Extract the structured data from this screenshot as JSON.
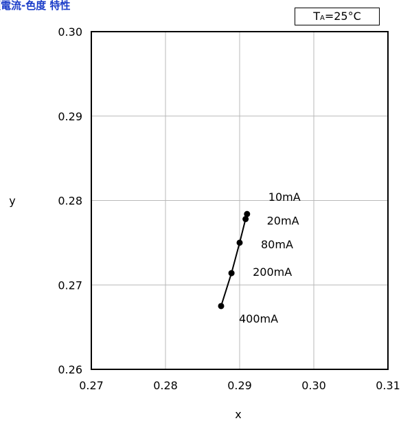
{
  "chart_data": {
    "type": "line",
    "title": "順電流-色度 特性",
    "condition": {
      "prefix": "T",
      "sub": "A",
      "suffix": "=25°C"
    },
    "xlabel": "x",
    "ylabel": "y",
    "xlim": [
      0.27,
      0.31
    ],
    "ylim": [
      0.26,
      0.3
    ],
    "xticks": [
      "0.27",
      "0.28",
      "0.29",
      "0.30",
      "0.31"
    ],
    "yticks": [
      "0.26",
      "0.27",
      "0.28",
      "0.29",
      "0.30"
    ],
    "grid": true,
    "series": [
      {
        "color": "#000000",
        "points": [
          {
            "x": 0.291,
            "y": 0.2784,
            "label": "10mA"
          },
          {
            "x": 0.2908,
            "y": 0.2778,
            "label": "20mA"
          },
          {
            "x": 0.29,
            "y": 0.275,
            "label": "80mA"
          },
          {
            "x": 0.2889,
            "y": 0.2714,
            "label": "200mA"
          },
          {
            "x": 0.2875,
            "y": 0.2675,
            "label": "400mA"
          }
        ]
      }
    ]
  }
}
